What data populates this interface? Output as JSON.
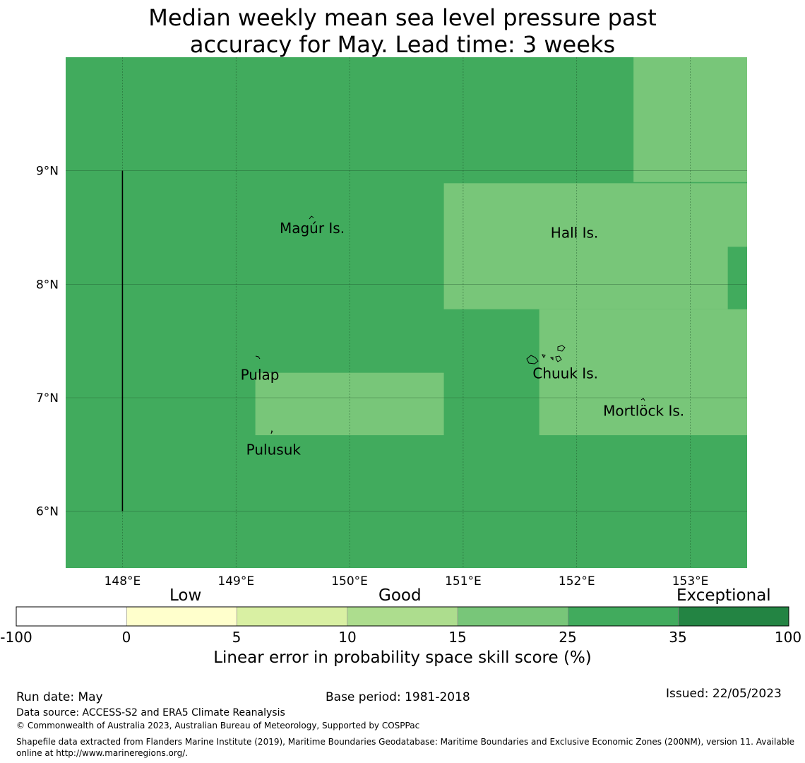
{
  "title_line1": "Median weekly mean sea level pressure past",
  "title_line2": "accuracy for May. Lead time: 3 weeks",
  "map": {
    "lon_range": [
      147.5,
      153.5
    ],
    "lat_range": [
      5.5,
      10.0
    ],
    "lon_ticks": [
      "148°E",
      "149°E",
      "150°E",
      "151°E",
      "152°E",
      "153°E"
    ],
    "lat_ticks": [
      "6°N",
      "7°N",
      "8°N",
      "9°N"
    ],
    "base_category": "25-35",
    "regions": [
      {
        "category": "15-25",
        "lon": [
          152.5,
          153.5
        ],
        "lat": [
          8.9,
          10.0
        ]
      },
      {
        "category": "15-25",
        "lon": [
          150.83,
          153.5
        ],
        "lat": [
          7.78,
          8.89
        ]
      },
      {
        "category": "15-25",
        "lon": [
          151.67,
          153.5
        ],
        "lat": [
          6.67,
          7.78
        ]
      },
      {
        "category": "15-25",
        "lon": [
          149.17,
          150.83
        ],
        "lat": [
          6.67,
          7.22
        ]
      },
      {
        "category": "25-35",
        "lon": [
          153.33,
          153.5
        ],
        "lat": [
          7.78,
          8.33
        ]
      }
    ],
    "places": [
      {
        "name": "Magúr Is.",
        "lon": 149.67,
        "lat": 8.5
      },
      {
        "name": "Hall Is.",
        "lon": 151.98,
        "lat": 8.46
      },
      {
        "name": "Pulap",
        "lon": 149.21,
        "lat": 7.21
      },
      {
        "name": "Chuuk Is.",
        "lon": 151.9,
        "lat": 7.22
      },
      {
        "name": "Mortlöck Is.",
        "lon": 152.59,
        "lat": 6.89
      },
      {
        "name": "Pulusuk",
        "lon": 149.33,
        "lat": 6.55
      }
    ]
  },
  "colorbar": {
    "words": [
      "Low",
      "Good",
      "Exceptional"
    ],
    "ticks": [
      "-100",
      "0",
      "5",
      "10",
      "15",
      "25",
      "35",
      "100"
    ],
    "colors": [
      "#ffffff",
      "#ffffcc",
      "#d9f0a3",
      "#addd8e",
      "#78c679",
      "#41ab5d",
      "#238443"
    ],
    "label": "Linear error in probability space skill score (%)"
  },
  "footer": {
    "run_date": "Run date: May",
    "base_period": "Base period: 1981-2018",
    "issued": "Issued: 22/05/2023",
    "data_source": "Data source: ACCESS-S2 and ERA5 Climate Reanalysis",
    "copyright": "© Commonwealth of Australia 2023, Australian Bureau of Meteorology, Supported by COSPPac",
    "shapefile": "Shapefile data extracted from Flanders Marine Institute (2019), Maritime Boundaries Geodatabase: Maritime Boundaries and Exclusive Economic Zones (200NM), version 11. Available online at http://www.marineregions.org/."
  }
}
